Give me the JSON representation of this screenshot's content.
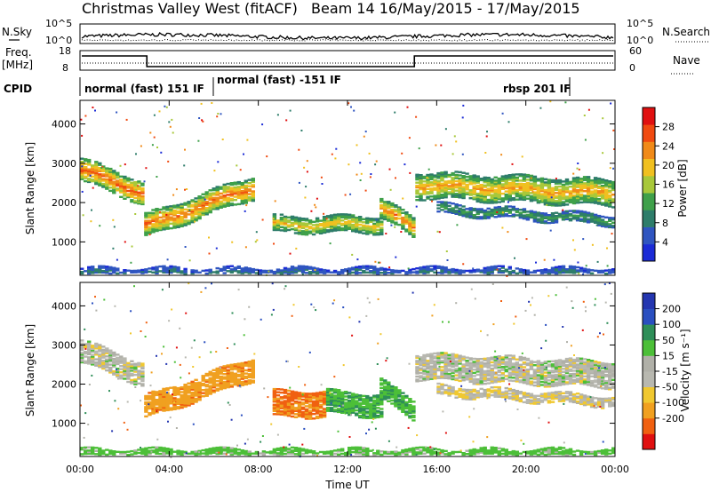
{
  "header": {
    "station": "Christmas Valley West (fitACF)",
    "beam_period": "Beam 14 16/May/2015 - 17/May/2015"
  },
  "strip_labels": {
    "nsky": "N.Sky",
    "nsky_ticks": [
      "10^5",
      "10^0"
    ],
    "nsearch": "N.Search",
    "nsearch_ticks": [
      "10^5",
      "10^0"
    ],
    "freq_line1": "Freq.",
    "freq_line2": "[MHz]",
    "freq_ticks": [
      "18",
      "8"
    ],
    "nave": "Nave",
    "nave_ticks": [
      "60",
      "0"
    ],
    "cpid": "CPID"
  },
  "cpid_modes": [
    {
      "label": "normal (fast) 151 IF",
      "start_hour": 0,
      "end_hour": 6
    },
    {
      "label": "normal (fast) -151 IF",
      "start_hour": 6,
      "end_hour": 22
    },
    {
      "label": "rbsp 201 IF",
      "start_hour": 22,
      "end_hour": 24
    }
  ],
  "colors": {
    "power": [
      "#1b2bd6",
      "#2f55c0",
      "#2e7d6a",
      "#3fa04a",
      "#a8c83a",
      "#f0c020",
      "#f08a18",
      "#f04a10",
      "#e01010"
    ],
    "velocity": [
      "#e01010",
      "#f06010",
      "#f0a020",
      "#f0c830",
      "#b8b8b0",
      "#b0b0a8",
      "#4cbf38",
      "#2e8e58",
      "#2a4fc0",
      "#2436b0"
    ]
  },
  "chart_data": [
    {
      "type": "heatmap",
      "name": "power",
      "ylabel": "Slant Range [km]",
      "xlim": [
        0,
        24
      ],
      "ylim": [
        150,
        4600
      ],
      "y_ticks": [
        1000,
        2000,
        3000,
        4000
      ],
      "colorbar_label": "Power [dB]",
      "colorbar_range": [
        0,
        32
      ],
      "colorbar_ticks": [
        "4",
        "8",
        "12",
        "16",
        "20",
        "24",
        "28"
      ],
      "bands": [
        {
          "t0": 0.0,
          "t1": 2.9,
          "r0": 2850,
          "r1": 2250,
          "width": 280,
          "peak": 26
        },
        {
          "t0": 2.9,
          "t1": 7.8,
          "r0": 1400,
          "r1": 2400,
          "width": 260,
          "peak": 25
        },
        {
          "t0": 8.6,
          "t1": 13.6,
          "r0": 1450,
          "r1": 1450,
          "width": 180,
          "peak": 20
        },
        {
          "t0": 13.4,
          "t1": 15.0,
          "r0": 1900,
          "r1": 1350,
          "width": 230,
          "peak": 24
        },
        {
          "t0": 15.1,
          "t1": 24.0,
          "r0": 2450,
          "r1": 2250,
          "width": 320,
          "peak": 22
        },
        {
          "t0": 16.0,
          "t1": 24.0,
          "r0": 1850,
          "r1": 1550,
          "width": 110,
          "peak": 12
        },
        {
          "t0": 0.0,
          "t1": 24.0,
          "r0": 210,
          "r1": 210,
          "width": 50,
          "peak": 8
        }
      ]
    },
    {
      "type": "heatmap",
      "name": "velocity",
      "ylabel": "Slant Range [km]",
      "xlabel": "Time UT",
      "xlim": [
        0,
        24
      ],
      "ylim": [
        150,
        4600
      ],
      "y_ticks": [
        1000,
        2000,
        3000,
        4000
      ],
      "x_ticks": [
        "00:00",
        "04:00",
        "08:00",
        "12:00",
        "16:00",
        "20:00",
        "00:00"
      ],
      "colorbar_label": "Velocity [m s⁻¹]",
      "colorbar_range": [
        -250,
        250
      ],
      "colorbar_ticks": [
        "200",
        "100",
        "50",
        "15",
        "-15",
        "-50",
        "-100",
        "-200"
      ],
      "bands": [
        {
          "t0": 0.0,
          "t1": 2.9,
          "r0": 2850,
          "r1": 2250,
          "width": 280,
          "vel": 0
        },
        {
          "t0": 2.9,
          "t1": 7.8,
          "r0": 1400,
          "r1": 2400,
          "width": 260,
          "vel": -60
        },
        {
          "t0": 8.6,
          "t1": 11.0,
          "r0": 1500,
          "r1": 1500,
          "width": 300,
          "vel": -80
        },
        {
          "t0": 11.0,
          "t1": 13.6,
          "r0": 1550,
          "r1": 1450,
          "width": 280,
          "vel": 45
        },
        {
          "t0": 13.4,
          "t1": 15.0,
          "r0": 1900,
          "r1": 1350,
          "width": 230,
          "vel": 40
        },
        {
          "t0": 15.1,
          "t1": 24.0,
          "r0": 2450,
          "r1": 2250,
          "width": 320,
          "vel": 0
        },
        {
          "t0": 16.0,
          "t1": 24.0,
          "r0": 1850,
          "r1": 1550,
          "width": 110,
          "vel": -10
        },
        {
          "t0": 0.0,
          "t1": 24.0,
          "r0": 210,
          "r1": 210,
          "width": 50,
          "vel": 30
        }
      ]
    }
  ]
}
